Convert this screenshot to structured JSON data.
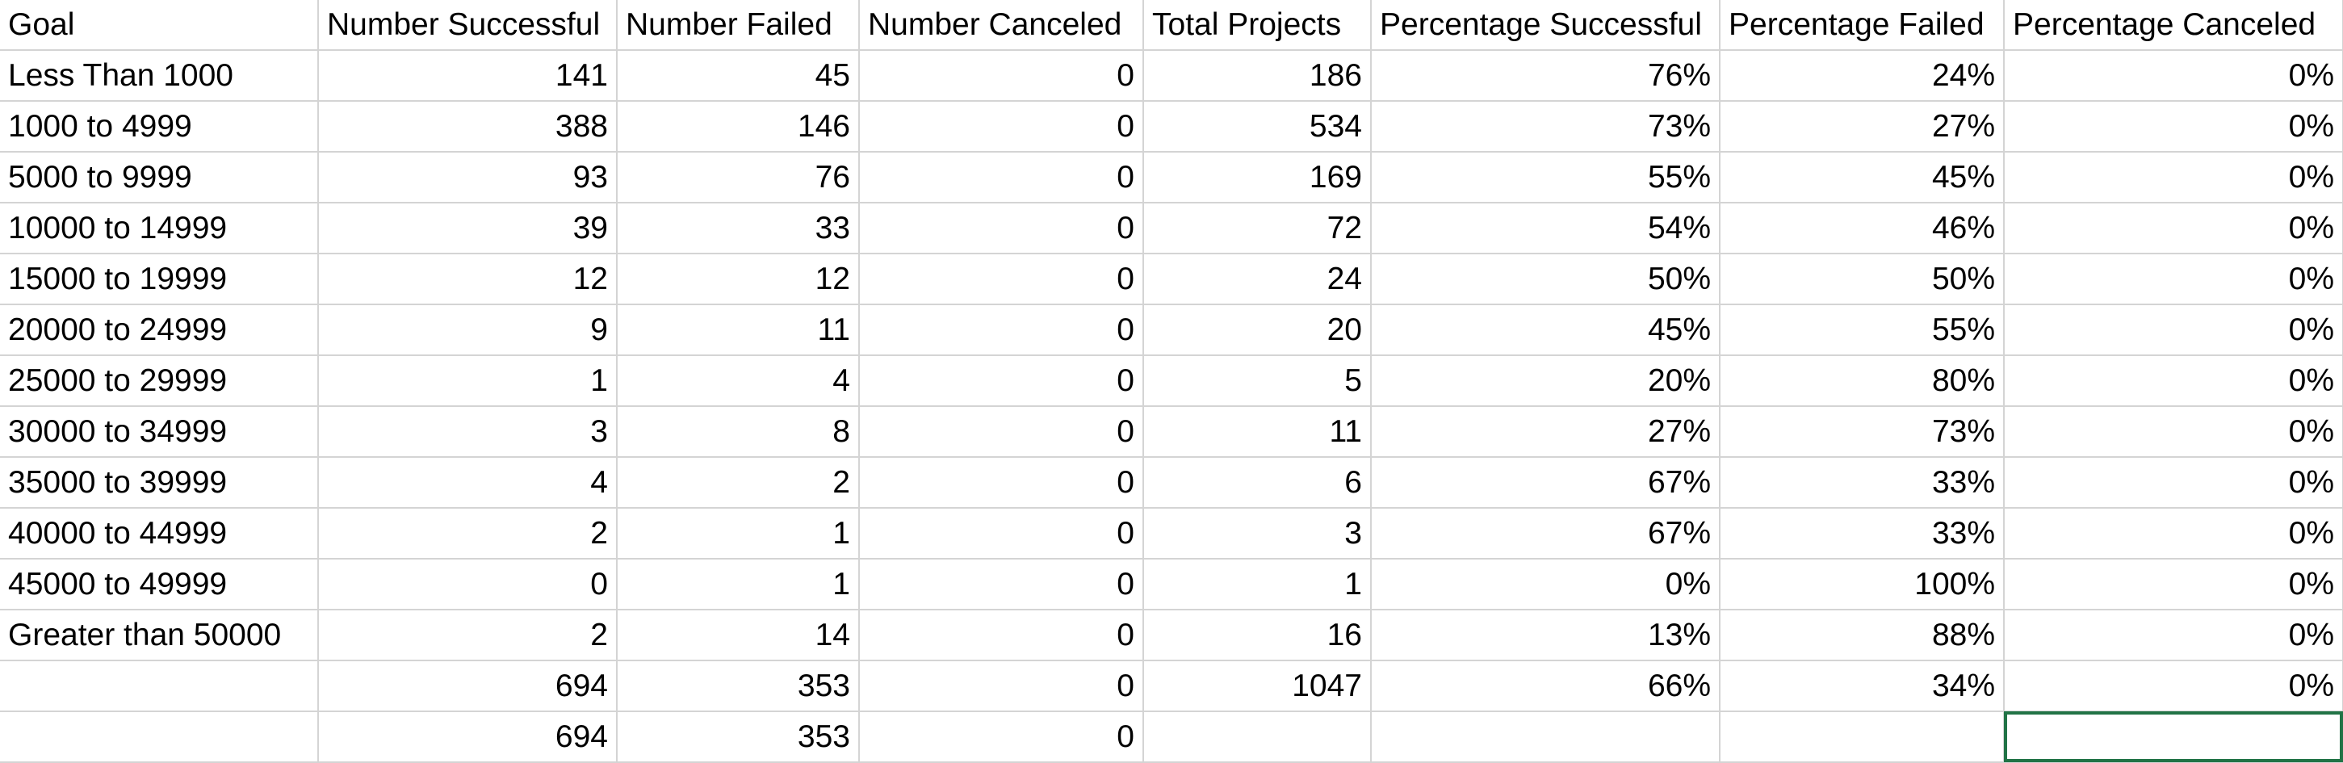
{
  "sheet": {
    "headers": [
      "Goal",
      "Number Successful",
      "Number Failed",
      "Number Canceled",
      "Total Projects",
      "Percentage Successful",
      "Percentage Failed",
      "Percentage Canceled"
    ],
    "rows": [
      [
        "Less Than 1000",
        "141",
        "45",
        "0",
        "186",
        "76%",
        "24%",
        "0%"
      ],
      [
        "1000 to 4999",
        "388",
        "146",
        "0",
        "534",
        "73%",
        "27%",
        "0%"
      ],
      [
        "5000 to 9999",
        "93",
        "76",
        "0",
        "169",
        "55%",
        "45%",
        "0%"
      ],
      [
        "10000 to 14999",
        "39",
        "33",
        "0",
        "72",
        "54%",
        "46%",
        "0%"
      ],
      [
        "15000 to 19999",
        "12",
        "12",
        "0",
        "24",
        "50%",
        "50%",
        "0%"
      ],
      [
        "20000 to 24999",
        "9",
        "11",
        "0",
        "20",
        "45%",
        "55%",
        "0%"
      ],
      [
        "25000 to 29999",
        "1",
        "4",
        "0",
        "5",
        "20%",
        "80%",
        "0%"
      ],
      [
        "30000 to 34999",
        "3",
        "8",
        "0",
        "11",
        "27%",
        "73%",
        "0%"
      ],
      [
        "35000 to 39999",
        "4",
        "2",
        "0",
        "6",
        "67%",
        "33%",
        "0%"
      ],
      [
        "40000 to 44999",
        "2",
        "1",
        "0",
        "3",
        "67%",
        "33%",
        "0%"
      ],
      [
        "45000 to 49999",
        "0",
        "1",
        "0",
        "1",
        "0%",
        "100%",
        "0%"
      ],
      [
        "Greater than 50000",
        "2",
        "14",
        "0",
        "16",
        "13%",
        "88%",
        "0%"
      ],
      [
        "",
        "694",
        "353",
        "0",
        "1047",
        "66%",
        "34%",
        "0%"
      ],
      [
        "",
        "694",
        "353",
        "0",
        "",
        "",
        "",
        ""
      ]
    ],
    "selection_color": "#217346",
    "gridline_color": "#d4d4d4"
  }
}
